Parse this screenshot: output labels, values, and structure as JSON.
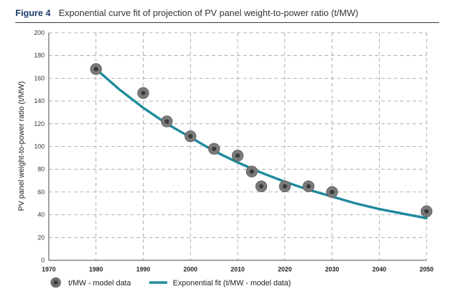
{
  "figure": {
    "label": "Figure 4",
    "title": "Exponential curve fit of projection of PV panel weight-to-power ratio (t/MW)"
  },
  "chart_data": {
    "type": "scatter",
    "title": "Exponential curve fit of projection of PV panel weight-to-power ratio (t/MW)",
    "xlabel": "",
    "ylabel": "PV panel weight-to-power ratio (t/MW)",
    "xlim": [
      1970,
      2050
    ],
    "ylim": [
      0,
      200
    ],
    "xticks": [
      1970,
      1980,
      1990,
      2000,
      2010,
      2020,
      2030,
      2040,
      2050
    ],
    "yticks": [
      0,
      20,
      40,
      60,
      80,
      100,
      120,
      140,
      160,
      180,
      200
    ],
    "grid": true,
    "legend_position": "bottom",
    "series": [
      {
        "name": "t/MW - model data",
        "kind": "scatter",
        "color": "#777777",
        "x": [
          1980,
          1990,
          1995,
          2000,
          2005,
          2010,
          2013,
          2015,
          2020,
          2025,
          2030,
          2050
        ],
        "y": [
          168,
          147,
          122,
          109,
          98,
          92,
          78,
          65,
          65,
          65,
          60,
          43
        ]
      },
      {
        "name": "Exponential fit (t/MW - model data)",
        "kind": "line",
        "color": "#1f8a9e",
        "x": [
          1980,
          1985,
          1990,
          1995,
          2000,
          2005,
          2010,
          2015,
          2020,
          2025,
          2030,
          2035,
          2040,
          2045,
          2050
        ],
        "y": [
          168,
          150,
          134,
          120,
          108,
          96,
          86,
          77,
          69,
          62,
          56,
          50,
          45,
          41,
          37
        ]
      }
    ]
  }
}
